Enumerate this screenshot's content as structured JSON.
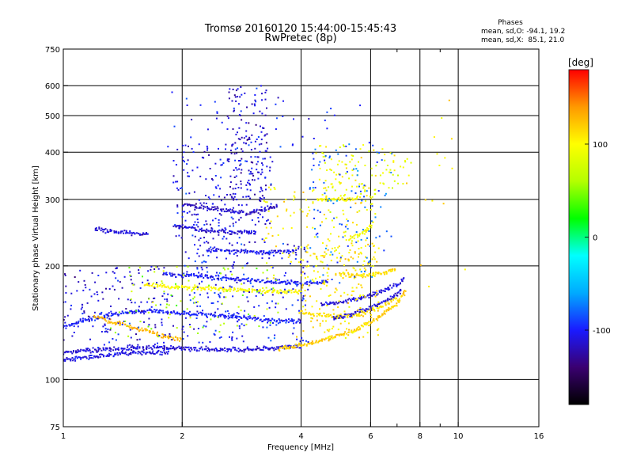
{
  "chart_data": {
    "type": "scatter",
    "title": "Tromsø 20160120 15:44:00-15:45:43",
    "subtitle": "RwPretec (8p)",
    "xlabel": "Frequency [MHz]",
    "ylabel": "Stationary phase Virtual Height [km]",
    "x_scale": "log",
    "y_scale": "log",
    "xlim": [
      1,
      16
    ],
    "ylim": [
      75,
      750
    ],
    "grid": true,
    "x_ticks": [
      1,
      2,
      4,
      6,
      8,
      10,
      16
    ],
    "x_minor_ticks": [
      7,
      9
    ],
    "y_ticks": [
      75,
      100,
      200,
      300,
      400,
      500,
      600,
      750
    ],
    "stats": {
      "heading": "Phases",
      "line_o": "mean, sd,O: -94.1, 19.2",
      "line_x": "mean, sd,X:  85.1, 21.0"
    },
    "colorbar": {
      "label": "[deg]",
      "range": [
        -180,
        180
      ],
      "ticks": [
        100,
        0,
        -100
      ],
      "colormap": [
        "#000000",
        "#3a0070",
        "#1a1aff",
        "#00aaff",
        "#00ffff",
        "#00ff00",
        "#b4ff00",
        "#ffff00",
        "#ff9900",
        "#ff0000"
      ]
    },
    "traces": [
      {
        "name": "",
        "phase": -112,
        "points": [
          [
            1.0,
            118
          ],
          [
            1.1,
            119
          ],
          [
            1.25,
            120
          ],
          [
            1.45,
            121
          ],
          [
            1.7,
            122
          ],
          [
            2.0,
            121
          ],
          [
            2.4,
            120
          ],
          [
            2.8,
            120
          ],
          [
            3.2,
            121
          ],
          [
            3.6,
            122
          ],
          [
            4.0,
            123
          ]
        ]
      },
      {
        "name": "",
        "phase": -108,
        "points": [
          [
            1.0,
            113
          ],
          [
            1.1,
            114
          ],
          [
            1.3,
            116
          ],
          [
            1.55,
            118
          ],
          [
            1.85,
            118
          ]
        ]
      },
      {
        "name": "",
        "phase": -100,
        "points": [
          [
            1.0,
            138
          ],
          [
            1.1,
            142
          ],
          [
            1.25,
            147
          ],
          [
            1.45,
            150
          ],
          [
            1.7,
            152
          ],
          [
            2.0,
            150
          ],
          [
            2.4,
            148
          ],
          [
            2.8,
            146
          ],
          [
            3.2,
            144
          ],
          [
            3.6,
            143
          ],
          [
            4.0,
            142
          ]
        ]
      },
      {
        "name": "",
        "phase": 130,
        "points": [
          [
            1.2,
            147
          ],
          [
            1.4,
            140
          ],
          [
            1.6,
            135
          ],
          [
            1.8,
            130
          ],
          [
            2.0,
            127
          ]
        ]
      },
      {
        "name": "",
        "phase": 120,
        "points": [
          [
            3.5,
            121
          ],
          [
            4.0,
            123
          ],
          [
            4.5,
            127
          ],
          [
            5.0,
            131
          ],
          [
            5.5,
            136
          ],
          [
            6.0,
            142
          ],
          [
            6.5,
            150
          ],
          [
            7.0,
            160
          ],
          [
            7.4,
            172
          ]
        ]
      },
      {
        "name": "",
        "phase": 112,
        "points": [
          [
            4.0,
            150
          ],
          [
            4.5,
            148
          ],
          [
            5.0,
            147
          ],
          [
            5.5,
            148
          ],
          [
            6.0,
            152
          ],
          [
            6.5,
            158
          ],
          [
            7.0,
            165
          ]
        ]
      },
      {
        "name": "",
        "phase": -110,
        "points": [
          [
            4.5,
            158
          ],
          [
            5.0,
            160
          ],
          [
            5.5,
            163
          ],
          [
            6.0,
            167
          ],
          [
            6.5,
            172
          ],
          [
            7.0,
            178
          ],
          [
            7.3,
            185
          ]
        ]
      },
      {
        "name": "",
        "phase": -112,
        "points": [
          [
            4.8,
            145
          ],
          [
            5.5,
            150
          ],
          [
            6.2,
            157
          ],
          [
            6.8,
            165
          ],
          [
            7.2,
            172
          ]
        ]
      },
      {
        "name": "",
        "phase": 112,
        "points": [
          [
            5.0,
            190
          ],
          [
            5.5,
            188
          ],
          [
            6.0,
            189
          ],
          [
            6.5,
            192
          ],
          [
            7.0,
            196
          ]
        ]
      },
      {
        "name": "",
        "phase": 100,
        "points": [
          [
            1.6,
            178
          ],
          [
            1.8,
            176
          ],
          [
            2.0,
            175
          ],
          [
            2.4,
            174
          ],
          [
            2.8,
            173
          ],
          [
            3.2,
            172
          ],
          [
            3.6,
            171
          ],
          [
            4.0,
            171
          ]
        ]
      },
      {
        "name": "",
        "phase": -100,
        "points": [
          [
            1.8,
            190
          ],
          [
            2.2,
            188
          ],
          [
            2.7,
            185
          ],
          [
            3.2,
            182
          ],
          [
            3.7,
            180
          ],
          [
            4.2,
            180
          ],
          [
            4.7,
            182
          ]
        ]
      },
      {
        "name": "",
        "phase": -115,
        "points": [
          [
            2.0,
            290
          ],
          [
            2.3,
            285
          ],
          [
            2.6,
            280
          ],
          [
            2.9,
            276
          ],
          [
            3.2,
            280
          ],
          [
            3.5,
            290
          ]
        ]
      },
      {
        "name": "",
        "phase": -110,
        "points": [
          [
            1.9,
            255
          ],
          [
            2.2,
            250
          ],
          [
            2.5,
            247
          ],
          [
            2.8,
            245
          ],
          [
            3.1,
            246
          ]
        ]
      },
      {
        "name": "",
        "phase": -105,
        "points": [
          [
            2.3,
            220
          ],
          [
            2.7,
            218
          ],
          [
            3.1,
            217
          ],
          [
            3.5,
            218
          ],
          [
            3.9,
            220
          ]
        ]
      },
      {
        "name": "",
        "phase": 100,
        "points": [
          [
            4.4,
            300
          ],
          [
            4.8,
            300
          ],
          [
            5.2,
            301
          ],
          [
            5.6,
            303
          ]
        ]
      },
      {
        "name": "",
        "phase": -110,
        "points": [
          [
            1.2,
            250
          ],
          [
            1.25,
            249
          ],
          [
            1.4,
            246
          ],
          [
            1.55,
            244
          ],
          [
            1.65,
            242
          ]
        ]
      },
      {
        "name": "",
        "phase": 95,
        "points": [
          [
            5.3,
            235
          ],
          [
            5.8,
            245
          ],
          [
            6.1,
            260
          ]
        ]
      }
    ],
    "clouds": [
      {
        "name": "",
        "phase": -110,
        "x": [
          1.0,
          1.9
        ],
        "y": [
          120,
          200
        ],
        "count": 170
      },
      {
        "name": "",
        "phase": -108,
        "x": [
          1.9,
          3.4
        ],
        "y": [
          230,
          420
        ],
        "count": 230
      },
      {
        "name": "",
        "phase": -112,
        "x": [
          2.6,
          3.3
        ],
        "y": [
          300,
          600
        ],
        "count": 130
      },
      {
        "name": "",
        "phase": -100,
        "x": [
          2.0,
          4.2
        ],
        "y": [
          125,
          230
        ],
        "count": 230
      },
      {
        "name": "",
        "phase": 100,
        "x": [
          3.2,
          6.2
        ],
        "y": [
          185,
          330
        ],
        "count": 140
      },
      {
        "name": "",
        "phase": 110,
        "x": [
          3.9,
          6.3
        ],
        "y": [
          128,
          230
        ],
        "count": 200
      },
      {
        "name": "",
        "phase": 95,
        "x": [
          4.3,
          6.6
        ],
        "y": [
          300,
          420
        ],
        "count": 90
      },
      {
        "name": "",
        "phase": -80,
        "x": [
          4.2,
          6.8
        ],
        "y": [
          180,
          420
        ],
        "count": 110
      },
      {
        "name": "",
        "phase": 90,
        "x": [
          6.4,
          7.7
        ],
        "y": [
          320,
          400
        ],
        "count": 25
      },
      {
        "name": "",
        "phase": 60,
        "x": [
          1.3,
          3.5
        ],
        "y": [
          130,
          200
        ],
        "count": 90
      },
      {
        "name": "",
        "phase": -100,
        "x": [
          1.8,
          6.0
        ],
        "y": [
          400,
          580
        ],
        "count": 45
      },
      {
        "name": "",
        "phase": 110,
        "x": [
          8.0,
          10.5
        ],
        "y": [
          170,
          560
        ],
        "count": 14
      }
    ]
  }
}
